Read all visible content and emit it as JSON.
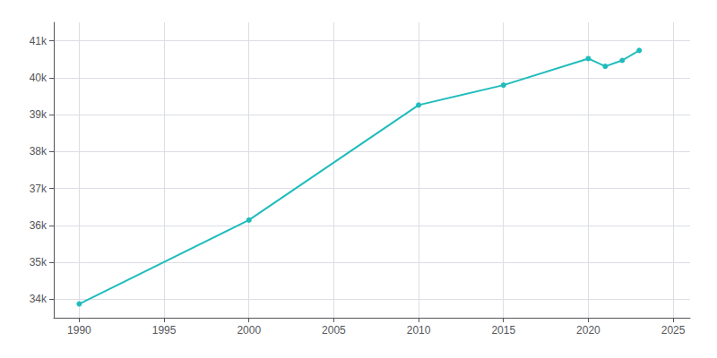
{
  "chart_data": {
    "type": "line",
    "x": [
      1990,
      2000,
      2010,
      2015,
      2020,
      2021,
      2022,
      2023
    ],
    "values": [
      33875,
      36145,
      39260,
      39800,
      40520,
      40310,
      40470,
      40740
    ],
    "color": "#20BCBC",
    "marker": "circle",
    "xlim": [
      1988.5,
      2026
    ],
    "xticks": [
      1990,
      1995,
      2000,
      2005,
      2010,
      2015,
      2020,
      2025
    ],
    "ylim": [
      33500,
      41500
    ],
    "yticks": [
      {
        "value": 34000,
        "label": "34k"
      },
      {
        "value": 35000,
        "label": "35k"
      },
      {
        "value": 36000,
        "label": "36k"
      },
      {
        "value": 37000,
        "label": "37k"
      },
      {
        "value": 38000,
        "label": "38k"
      },
      {
        "value": 39000,
        "label": "39k"
      },
      {
        "value": 40000,
        "label": "40k"
      },
      {
        "value": 41000,
        "label": "41k"
      }
    ],
    "grid": true
  }
}
